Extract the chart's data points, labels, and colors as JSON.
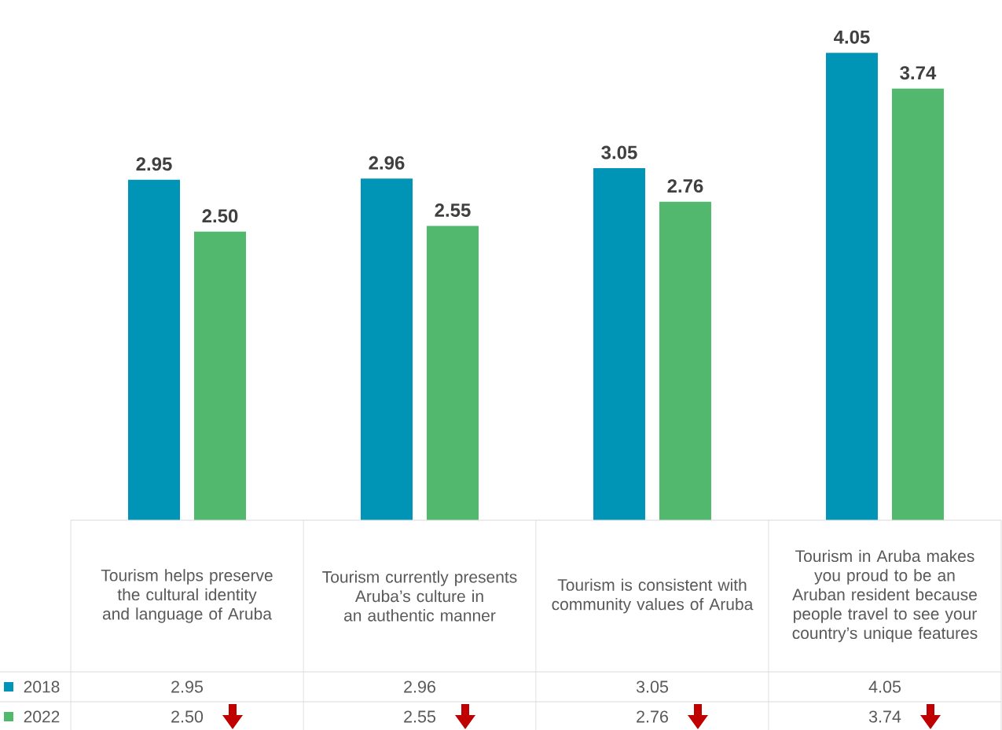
{
  "chart_data": {
    "type": "bar",
    "categories": [
      "Tourism helps preserve the cultural identity and language of Aruba",
      "Tourism currently presents Aruba’s culture in an authentic manner",
      "Tourism is consistent with community values of Aruba",
      "Tourism in Aruba makes you proud to be an Aruban resident because people travel to see your country’s unique features"
    ],
    "series": [
      {
        "name": "2018",
        "color": "#0095b6",
        "values": [
          2.95,
          2.96,
          3.05,
          4.05
        ],
        "value_labels": [
          "2.95",
          "2.96",
          "3.05",
          "4.05"
        ]
      },
      {
        "name": "2022",
        "color": "#52b86e",
        "values": [
          2.5,
          2.55,
          2.76,
          3.74
        ],
        "value_labels": [
          "2.50",
          "2.55",
          "2.76",
          "3.74"
        ]
      }
    ],
    "legend": "bottom left"
  }
}
